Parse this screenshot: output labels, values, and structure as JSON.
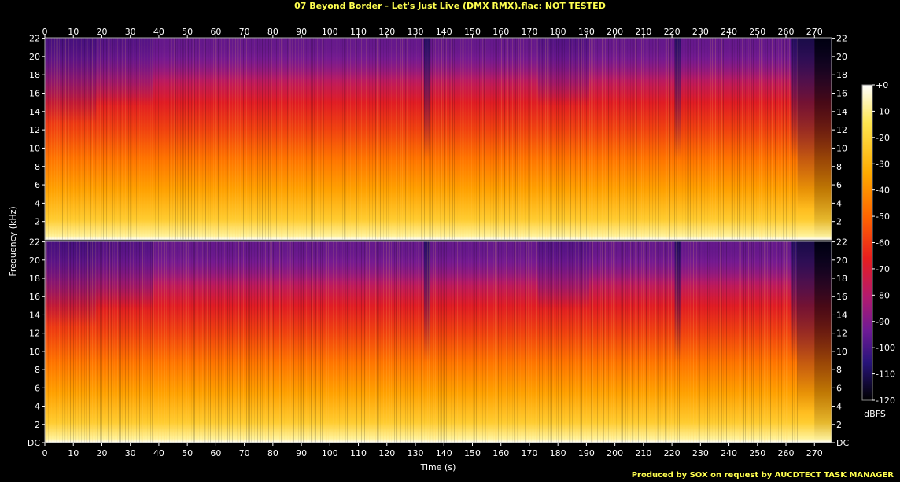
{
  "title": "07 Beyond Border - Let's Just Live (DMX RMX).flac: NOT TESTED",
  "footer": "Produced by SOX on request by AUCDTECT TASK MANAGER",
  "chart_data": {
    "type": "heatmap",
    "subtype": "spectrogram",
    "xlabel": "Time (s)",
    "ylabel": "Frequency (kHz)",
    "colorbar_label": "dBFS",
    "channels": 2,
    "xlim": [
      0,
      276
    ],
    "ylim": [
      0,
      22.05
    ],
    "x_ticks": [
      0,
      10,
      20,
      30,
      40,
      50,
      60,
      70,
      80,
      90,
      100,
      110,
      120,
      130,
      140,
      150,
      160,
      170,
      180,
      190,
      200,
      210,
      220,
      230,
      240,
      250,
      260,
      270
    ],
    "y_ticks": [
      {
        "value": 0,
        "label": "DC"
      },
      {
        "value": 2,
        "label": "2"
      },
      {
        "value": 4,
        "label": "4"
      },
      {
        "value": 6,
        "label": "6"
      },
      {
        "value": 8,
        "label": "8"
      },
      {
        "value": 10,
        "label": "10"
      },
      {
        "value": 12,
        "label": "12"
      },
      {
        "value": 14,
        "label": "14"
      },
      {
        "value": 16,
        "label": "16"
      },
      {
        "value": 18,
        "label": "18"
      },
      {
        "value": 20,
        "label": "20"
      },
      {
        "value": 22,
        "label": "22"
      }
    ],
    "colorbar_ticks": [
      "+0",
      "-10",
      "-20",
      "-30",
      "-40",
      "-50",
      "-60",
      "-70",
      "-80",
      "-90",
      "-100",
      "-110",
      "-120"
    ],
    "colorbar_range": [
      -120,
      0
    ],
    "colormap_stops": [
      "#000000",
      "#1a0050",
      "#4c0a8c",
      "#8c1a8c",
      "#c81e50",
      "#f03214",
      "#ff6400",
      "#ffaa00",
      "#ffe650",
      "#ffffff"
    ],
    "energy_regions": [
      {
        "t_start": 0,
        "t_end": 18,
        "level": "quiet"
      },
      {
        "t_start": 18,
        "t_end": 38,
        "level": "medium"
      },
      {
        "t_start": 38,
        "t_end": 133,
        "level": "loud"
      },
      {
        "t_start": 133,
        "t_end": 135,
        "level": "dip"
      },
      {
        "t_start": 135,
        "t_end": 173,
        "level": "loud"
      },
      {
        "t_start": 173,
        "t_end": 191,
        "level": "medium"
      },
      {
        "t_start": 191,
        "t_end": 221,
        "level": "loud"
      },
      {
        "t_start": 221,
        "t_end": 223,
        "level": "dip"
      },
      {
        "t_start": 223,
        "t_end": 262,
        "level": "loud"
      },
      {
        "t_start": 262,
        "t_end": 264,
        "level": "dip"
      },
      {
        "t_start": 264,
        "t_end": 270,
        "level": "fade"
      },
      {
        "t_start": 270,
        "t_end": 276,
        "level": "silence"
      }
    ]
  }
}
